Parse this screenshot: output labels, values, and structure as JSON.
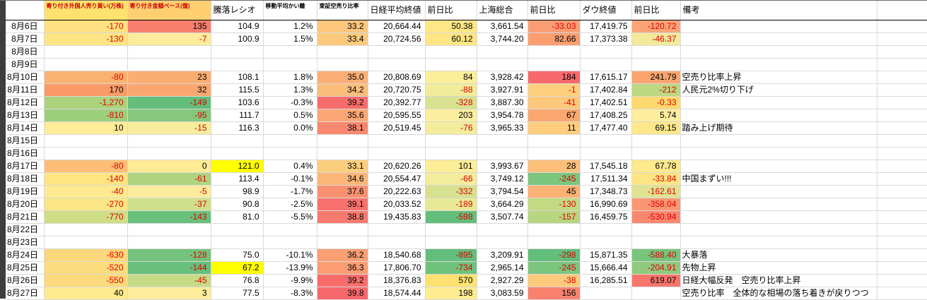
{
  "colors": {
    "negative_text": "#E00000",
    "header_accent_text": "#CC0000",
    "gridline": "#D9D9D9",
    "header_bottom_border": "#000000",
    "manual_highlight": "#FFFF00",
    "scale_red": "#F8696B",
    "scale_yellow": "#FFEB84",
    "scale_green": "#63BE7B",
    "window_edge": "#3E3E3E"
  },
  "columns": [
    {
      "key": "foreign_shares",
      "label": "寄り付き外国人売り買い(万株)",
      "small": true,
      "header_bg": "#FFE26E",
      "header_color": "#CC0000"
    },
    {
      "key": "foreign_amount",
      "label": "寄り付き金額ベース(億)",
      "small": true,
      "header_bg": "#FFCF70",
      "header_color": "#CC0000"
    },
    {
      "key": "touraku_ratio",
      "label": "騰落レシオ"
    },
    {
      "key": "ma_kairi",
      "label": "移動平均かい離",
      "small": true
    },
    {
      "key": "short_sell_ratio",
      "label": "東証空売り比率",
      "small": true
    },
    {
      "key": "nikkei_close",
      "label": "日経平均終値"
    },
    {
      "key": "nikkei_chg",
      "label": "前日比"
    },
    {
      "key": "shanghai",
      "label": "上海総合"
    },
    {
      "key": "shanghai_chg",
      "label": "前日比"
    },
    {
      "key": "dow_close",
      "label": "ダウ終値"
    },
    {
      "key": "dow_chg",
      "label": "前日比"
    },
    {
      "key": "remark",
      "label": "備考"
    }
  ],
  "rows": [
    {
      "date": "8月6日",
      "remark": "",
      "cells": [
        {
          "v": "-170",
          "bg": "#FFE181",
          "neg": true
        },
        {
          "v": "135",
          "bg": "#F87F6E"
        },
        {
          "v": "104.9"
        },
        {
          "v": "1.2%"
        },
        {
          "v": "33.2",
          "bg": "#FCC77C"
        },
        {
          "v": "20,664.44"
        },
        {
          "v": "50.38",
          "bg": "#FEE886"
        },
        {
          "v": "3,661.54"
        },
        {
          "v": "-33.03",
          "bg": "#FA9E75",
          "neg": true
        },
        {
          "v": "17,419.75"
        },
        {
          "v": "-120.72",
          "bg": "#FBA478",
          "neg": true
        }
      ]
    },
    {
      "date": "8月7日",
      "remark": "",
      "cells": [
        {
          "v": "-130",
          "bg": "#FFE583",
          "neg": true
        },
        {
          "v": "-7",
          "bg": "#FCEC9C",
          "neg": true
        },
        {
          "v": "100.9"
        },
        {
          "v": "1.5%"
        },
        {
          "v": "33.4",
          "bg": "#FCC97C"
        },
        {
          "v": "20,724.56"
        },
        {
          "v": "60.12",
          "bg": "#FEE685"
        },
        {
          "v": "3,744.20"
        },
        {
          "v": "82.66",
          "bg": "#FA9E6F"
        },
        {
          "v": "17,373.38"
        },
        {
          "v": "-46.37",
          "bg": "#F2EA9A",
          "neg": true
        }
      ]
    },
    {
      "date": "8月8日",
      "remark": "",
      "cells": []
    },
    {
      "date": "8月9日",
      "remark": "",
      "cells": []
    },
    {
      "date": "8月10日",
      "remark": "空売り比率上昇",
      "cells": [
        {
          "v": "-80",
          "bg": "#FBB271",
          "neg": true
        },
        {
          "v": "23",
          "bg": "#FBAE72"
        },
        {
          "v": "108.1"
        },
        {
          "v": "1.8%"
        },
        {
          "v": "35.0",
          "bg": "#FBAF76"
        },
        {
          "v": "20,808.69"
        },
        {
          "v": "84",
          "bg": "#FDEE9B"
        },
        {
          "v": "3,928.42"
        },
        {
          "v": "184",
          "bg": "#F8696B"
        },
        {
          "v": "17,615.17"
        },
        {
          "v": "241.79",
          "bg": "#FAA46E"
        }
      ]
    },
    {
      "date": "8月11日",
      "remark": "人民元2%切り下げ",
      "cells": [
        {
          "v": "170",
          "bg": "#F99A67"
        },
        {
          "v": "32",
          "bg": "#FAA76F"
        },
        {
          "v": "115.5"
        },
        {
          "v": "1.3%"
        },
        {
          "v": "34.2",
          "bg": "#FBBD7A"
        },
        {
          "v": "20,720.75"
        },
        {
          "v": "-88",
          "bg": "#F0EC9B",
          "neg": true
        },
        {
          "v": "3,927.91"
        },
        {
          "v": "-1",
          "bg": "#FED07E",
          "neg": true
        },
        {
          "v": "17,402.84"
        },
        {
          "v": "-212",
          "bg": "#BCD881",
          "neg": true
        }
      ]
    },
    {
      "date": "8月12日",
      "remark": "",
      "cells": [
        {
          "v": "-1,270",
          "bg": "#ABD37E",
          "neg": true
        },
        {
          "v": "-149",
          "bg": "#63BE7B",
          "neg": true
        },
        {
          "v": "103.6"
        },
        {
          "v": "-0.3%"
        },
        {
          "v": "39.2",
          "bg": "#F86D6C"
        },
        {
          "v": "20,392.77"
        },
        {
          "v": "-328",
          "bg": "#D8E18F",
          "neg": true
        },
        {
          "v": "3,887.30"
        },
        {
          "v": "-41",
          "bg": "#FDC87C",
          "neg": true
        },
        {
          "v": "17,402.51"
        },
        {
          "v": "-0.33",
          "bg": "#FED96E",
          "neg": true
        }
      ]
    },
    {
      "date": "8月13日",
      "remark": "",
      "cells": [
        {
          "v": "-810",
          "bg": "#9DCF7D",
          "neg": true
        },
        {
          "v": "-95",
          "bg": "#84C77D",
          "neg": true
        },
        {
          "v": "111.7"
        },
        {
          "v": "0.5%"
        },
        {
          "v": "35.6",
          "bg": "#FAA775"
        },
        {
          "v": "20,595.55"
        },
        {
          "v": "203",
          "bg": "#FBEE9E"
        },
        {
          "v": "3,954.78"
        },
        {
          "v": "67",
          "bg": "#FBA770"
        },
        {
          "v": "17,408.25"
        },
        {
          "v": "5.74",
          "bg": "#FEED9D"
        }
      ]
    },
    {
      "date": "8月14日",
      "remark": "踏み上げ期待",
      "cells": [
        {
          "v": "10",
          "bg": "#FEEC98"
        },
        {
          "v": "-15",
          "bg": "#F8ED9D",
          "neg": true
        },
        {
          "v": "116.3"
        },
        {
          "v": "0.0%"
        },
        {
          "v": "38.1",
          "bg": "#F8886F"
        },
        {
          "v": "20,519.45"
        },
        {
          "v": "-76",
          "bg": "#F2EC9C",
          "neg": true
        },
        {
          "v": "3,965.33"
        },
        {
          "v": "11",
          "bg": "#FDCD7D"
        },
        {
          "v": "17,477.40"
        },
        {
          "v": "69.15",
          "bg": "#FEE88B"
        }
      ]
    },
    {
      "date": "8月15日",
      "remark": "",
      "cells": []
    },
    {
      "date": "8月16日",
      "remark": "",
      "cells": []
    },
    {
      "date": "8月17日",
      "remark": "",
      "cells": [
        {
          "v": "-80",
          "bg": "#FCBE76",
          "neg": true
        },
        {
          "v": "0",
          "bg": "#FEEB94"
        },
        {
          "v": "121.0",
          "bg": "#FFFF00"
        },
        {
          "v": "0.4%"
        },
        {
          "v": "33.1",
          "bg": "#FCCF7E"
        },
        {
          "v": "20,620.26"
        },
        {
          "v": "101",
          "bg": "#FDED97"
        },
        {
          "v": "3,993.67"
        },
        {
          "v": "28",
          "bg": "#FCBF79"
        },
        {
          "v": "17,545.18"
        },
        {
          "v": "67.78",
          "bg": "#FEE98D"
        }
      ]
    },
    {
      "date": "8月18日",
      "remark": "中国まずい!!!",
      "cells": [
        {
          "v": "-140",
          "bg": "#FFE482",
          "neg": true
        },
        {
          "v": "-61",
          "bg": "#AFD480",
          "neg": true
        },
        {
          "v": "113.4"
        },
        {
          "v": "-0.1%"
        },
        {
          "v": "34.6",
          "bg": "#FBB678"
        },
        {
          "v": "20,554.47"
        },
        {
          "v": "-66",
          "bg": "#F3EC9C",
          "neg": true
        },
        {
          "v": "3,749.12"
        },
        {
          "v": "-245",
          "bg": "#7CC57D",
          "neg": true
        },
        {
          "v": "17,511.34"
        },
        {
          "v": "-33.84",
          "bg": "#FEE583",
          "neg": true
        }
      ]
    },
    {
      "date": "8月19日",
      "remark": "",
      "cells": [
        {
          "v": "-40",
          "bg": "#FEEA90",
          "neg": true
        },
        {
          "v": "-5",
          "bg": "#FBEC9D",
          "neg": true
        },
        {
          "v": "98.9"
        },
        {
          "v": "-1.7%"
        },
        {
          "v": "37.6",
          "bg": "#F99171"
        },
        {
          "v": "20,222.63"
        },
        {
          "v": "-332",
          "bg": "#D7E18F",
          "neg": true
        },
        {
          "v": "3,794.54"
        },
        {
          "v": "45",
          "bg": "#FCB274"
        },
        {
          "v": "17,348.73"
        },
        {
          "v": "-162.61",
          "bg": "#DFE392",
          "neg": true
        }
      ]
    },
    {
      "date": "8月20日",
      "remark": "",
      "cells": [
        {
          "v": "-270",
          "bg": "#FAE684",
          "neg": true
        },
        {
          "v": "-37",
          "bg": "#CFDF89",
          "neg": true
        },
        {
          "v": "90.8"
        },
        {
          "v": "-2.5%"
        },
        {
          "v": "39.1",
          "bg": "#F8716D"
        },
        {
          "v": "20,033.52"
        },
        {
          "v": "-189",
          "bg": "#E8E996",
          "neg": true
        },
        {
          "v": "3,664.29"
        },
        {
          "v": "-130",
          "bg": "#C3DA82",
          "neg": true
        },
        {
          "v": "16,990.69"
        },
        {
          "v": "-358.04",
          "bg": "#FA9673",
          "neg": true
        }
      ]
    },
    {
      "date": "8月21日",
      "remark": "",
      "cells": [
        {
          "v": "-770",
          "bg": "#CFDE84",
          "neg": true
        },
        {
          "v": "-143",
          "bg": "#68C07B",
          "neg": true
        },
        {
          "v": "81.0"
        },
        {
          "v": "-5.5%"
        },
        {
          "v": "38.8",
          "bg": "#F87A6E"
        },
        {
          "v": "19,435.83"
        },
        {
          "v": "-598",
          "bg": "#63BE7B",
          "neg": true
        },
        {
          "v": "3,507.74"
        },
        {
          "v": "-157",
          "bg": "#B7D680",
          "neg": true
        },
        {
          "v": "16,459.75"
        },
        {
          "v": "-530.94",
          "bg": "#FA8770",
          "neg": true
        }
      ]
    },
    {
      "date": "8月22日",
      "remark": "",
      "cells": []
    },
    {
      "date": "8月23日",
      "remark": "",
      "cells": []
    },
    {
      "date": "8月24日",
      "remark": "大暴落",
      "cells": [
        {
          "v": "-630",
          "bg": "#FBD77B",
          "neg": true
        },
        {
          "v": "-128",
          "bg": "#74C37C",
          "neg": true
        },
        {
          "v": "75.0"
        },
        {
          "v": "-10.1%"
        },
        {
          "v": "36.2",
          "bg": "#FA9F73"
        },
        {
          "v": "18,540.68"
        },
        {
          "v": "-895",
          "bg": "#63BE7B",
          "neg": true
        },
        {
          "v": "3,209.91"
        },
        {
          "v": "-298",
          "bg": "#63BE7B",
          "neg": true
        },
        {
          "v": "15,871.35"
        },
        {
          "v": "-588.40",
          "bg": "#77C47D",
          "neg": true
        }
      ]
    },
    {
      "date": "8月25日",
      "remark": "先物上昇",
      "cells": [
        {
          "v": "-520",
          "bg": "#FCDD7D",
          "neg": true
        },
        {
          "v": "-144",
          "bg": "#67BF7B",
          "neg": true
        },
        {
          "v": "67.2",
          "bg": "#FFFF00"
        },
        {
          "v": "-13.9%"
        },
        {
          "v": "36.3",
          "bg": "#FA9D73"
        },
        {
          "v": "17,806.70"
        },
        {
          "v": "-734",
          "bg": "#6EC27B",
          "neg": true
        },
        {
          "v": "2,965.14"
        },
        {
          "v": "-245",
          "bg": "#7CC57D",
          "neg": true
        },
        {
          "v": "15,666.44"
        },
        {
          "v": "-204.91",
          "bg": "#90CA7E",
          "neg": true
        }
      ]
    },
    {
      "date": "8月26日",
      "remark": "日経大幅反発　空売り比率上昇",
      "cells": [
        {
          "v": "-550",
          "bg": "#FCDA7C",
          "neg": true
        },
        {
          "v": "-45",
          "bg": "#C6DB85",
          "neg": true
        },
        {
          "v": "76.8"
        },
        {
          "v": "-9.9%"
        },
        {
          "v": "39.2",
          "bg": "#F86D6C"
        },
        {
          "v": "18,376.83"
        },
        {
          "v": "570",
          "bg": "#FEE170"
        },
        {
          "v": "2,927.29"
        },
        {
          "v": "-38",
          "bg": "#FDC97B",
          "neg": true
        },
        {
          "v": "16,285.51"
        },
        {
          "v": "619.07",
          "bg": "#F8756C"
        }
      ]
    },
    {
      "date": "8月27日",
      "remark": "空売り比率　全体的な相場の落ち着きが戻りつつ",
      "cells": [
        {
          "v": "40",
          "bg": "#FEEA8F"
        },
        {
          "v": "3",
          "bg": "#FDEC9B"
        },
        {
          "v": "77.5"
        },
        {
          "v": "-8.3%"
        },
        {
          "v": "39.8",
          "bg": "#F8696B"
        },
        {
          "v": "18,574.44"
        },
        {
          "v": "198",
          "bg": "#FEEC92"
        },
        {
          "v": "3,083.59"
        },
        {
          "v": "156",
          "bg": "#F9826F"
        },
        {
          "v": ""
        },
        {
          "v": ""
        }
      ]
    }
  ]
}
